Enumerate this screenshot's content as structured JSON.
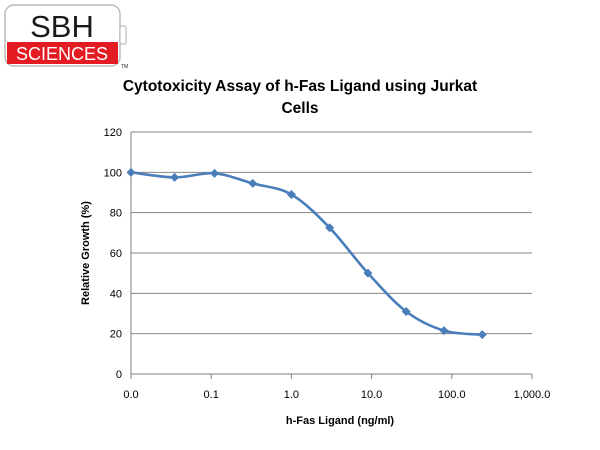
{
  "logo": {
    "top_text": "SBH",
    "bottom_text": "SCIENCES",
    "trademark": "TM",
    "colors": {
      "text_dark": "#1a1a1a",
      "band_red": "#e31b23",
      "band_text": "#ffffff"
    }
  },
  "chart_data": {
    "type": "line",
    "title_lines": [
      "Cytotoxicity Assay of h-Fas Ligand using Jurkat",
      "Cells"
    ],
    "xlabel": "h-Fas Ligand (ng/ml)",
    "ylabel": "Relative Growth (%)",
    "x_scale": "log",
    "x_tick_values": [
      0.01,
      0.1,
      1,
      10,
      100,
      1000
    ],
    "x_tick_labels": [
      "0.0",
      "0.1",
      "1.0",
      "10.0",
      "100.0",
      "1,000.0"
    ],
    "y_ticks": [
      0,
      20,
      40,
      60,
      80,
      100,
      120
    ],
    "ylim": [
      0,
      120
    ],
    "grid": "horizontal",
    "smooth": true,
    "marker": "diamond",
    "series": [
      {
        "color": "#4a7ebb",
        "x": [
          0.01,
          0.035,
          0.11,
          0.33,
          1.0,
          3.0,
          9.0,
          27.0,
          80.0,
          240.0
        ],
        "y": [
          100,
          97.5,
          99.5,
          94.5,
          89,
          72.5,
          50,
          31,
          21.5,
          19.5
        ]
      }
    ]
  }
}
